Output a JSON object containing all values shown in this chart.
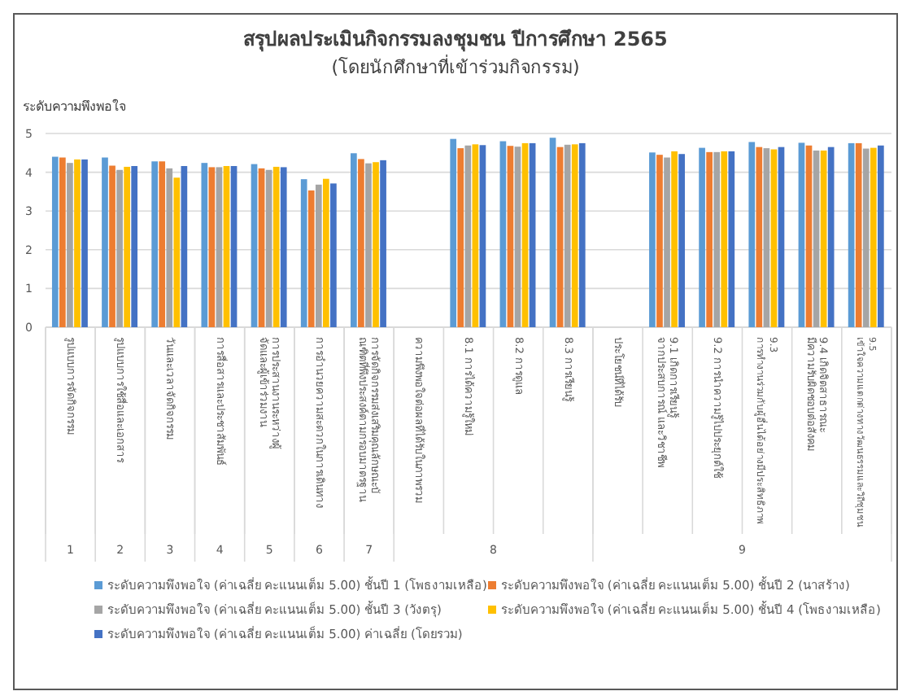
{
  "chart_data": {
    "type": "bar",
    "title": "สรุปผลประเมินกิจกรรมลงชุมชน ปีการศึกษา 2565",
    "subtitle": "(โดยนักศึกษาที่เข้าร่วมกิจกรรม)",
    "ylabel": "ระดับความพึงพอใจ",
    "categories": [
      "รูปแบบการจัดกิจกรรม",
      "รูปแบบการใช้สื่อและเอกสาร",
      "วันและเวลาจัดกิจกรรม",
      "การสื่อสารและประชาสัมพันธ์",
      "การประสานงานระหว่างผู้จัดและผู้เข้าร่วมงาน",
      "การอำนวยความสะดวกในการเดินทาง",
      "การจัดกิจกรรมส่งเสริมคุณลักษณะบัณฑิตที่พึงประสงค์ตามกรอบมาตรฐาน",
      "ความพึงพอใจต่อผลที่ได้รับในภาพรวม",
      "8.1 การได้ความรู้ใหม่",
      "8.2 การดูแล",
      "8.3 การเรียนรู้",
      "ประโยชน์ที่ได้รับ",
      "9.1 เกิดการเรียนรู้ จากประสบการณ์ และวิชาชีพ",
      "9.2 การนำความรู้ไปประยุกต์ใช้",
      "9.3 การทำงานร่วมกับผู้อื่นได้อย่างมีประสิทธิภาพ",
      "9.4 เกิดจิตสาธารณะ มีความรับผิดชอบต่อสังคม",
      "9.5 เข้าใจความแตกต่างทางวัฒนธรรมและวิถีชุมชน"
    ],
    "series": [
      {
        "name": "ระดับความพึงพอใจ (ค่าเฉลี่ย คะแนนเต็ม 5.00) ชั้นปี 1 (โพธงามเหลือ)",
        "color": "#5b9bd5",
        "values": [
          4.4,
          4.38,
          4.28,
          4.24,
          4.21,
          3.82,
          4.49,
          null,
          4.86,
          4.8,
          4.89,
          null,
          4.51,
          4.63,
          4.78,
          4.76,
          4.75
        ]
      },
      {
        "name": "ระดับความพึงพอใจ (ค่าเฉลี่ย คะแนนเต็ม 5.00) ชั้นปี 2 (นาสร้าง)",
        "color": "#ed7d31",
        "values": [
          4.38,
          4.17,
          4.28,
          4.13,
          4.1,
          3.53,
          4.34,
          null,
          4.62,
          4.68,
          4.65,
          null,
          4.45,
          4.52,
          4.65,
          4.69,
          4.75
        ]
      },
      {
        "name": "ระดับความพึงพอใจ (ค่าเฉลี่ย คะแนนเต็ม 5.00) ชั้นปี 3 (วังตรุ)",
        "color": "#a5a5a5",
        "values": [
          4.24,
          4.06,
          4.1,
          4.13,
          4.06,
          3.68,
          4.23,
          null,
          4.69,
          4.66,
          4.71,
          null,
          4.38,
          4.52,
          4.62,
          4.56,
          4.61
        ]
      },
      {
        "name": "ระดับความพึงพอใจ (ค่าเฉลี่ย คะแนนเต็ม 5.00) ชั้นปี 4 (โพธงามเหลือ)",
        "color": "#ffc000",
        "values": [
          4.33,
          4.14,
          3.86,
          4.16,
          4.14,
          3.83,
          4.26,
          null,
          4.72,
          4.75,
          4.72,
          null,
          4.54,
          4.54,
          4.59,
          4.56,
          4.63
        ]
      },
      {
        "name": "ระดับความพึงพอใจ (ค่าเฉลี่ย คะแนนเต็ม 5.00) ค่าเฉลี่ย (โดยรวม)",
        "color": "#4472c4",
        "values": [
          4.33,
          4.16,
          4.16,
          4.16,
          4.13,
          3.71,
          4.31,
          null,
          4.7,
          4.75,
          4.75,
          null,
          4.47,
          4.54,
          4.65,
          4.65,
          4.69
        ]
      }
    ],
    "ylim": [
      0,
      5
    ],
    "yticks": [
      0,
      1,
      2,
      3,
      4,
      5
    ],
    "grid": "y",
    "legend": "bottom",
    "annotations": [
      "1",
      "2",
      "3",
      "4",
      "5",
      "6",
      "7",
      "8",
      "9"
    ]
  }
}
